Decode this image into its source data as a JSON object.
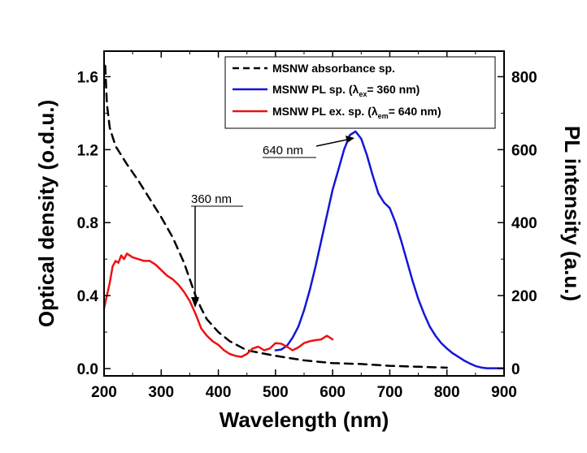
{
  "chart_data": {
    "type": "line",
    "xlabel": "Wavelength (nm)",
    "ylabel_left": "Optical density (o.d.u.)",
    "ylabel_right": "PL intensity (a.u.)",
    "xlim": [
      200,
      900
    ],
    "ylim_left": [
      -0.04,
      1.74
    ],
    "ylim_right": [
      -20,
      870
    ],
    "x_ticks": [
      200,
      300,
      400,
      500,
      600,
      700,
      800,
      900
    ],
    "y_left_ticks": [
      "0.0",
      "0.4",
      "0.8",
      "1.2",
      "1.6"
    ],
    "y_left_tick_values": [
      0.0,
      0.4,
      0.8,
      1.2,
      1.6
    ],
    "y_right_ticks": [
      "0",
      "200",
      "400",
      "600",
      "800"
    ],
    "y_right_tick_values": [
      0,
      200,
      400,
      600,
      800
    ],
    "grid": false,
    "legend_position": "top-right",
    "series": [
      {
        "name": "MSNW absorbance sp.",
        "axis": "left",
        "color": "#000000",
        "style": "dashed",
        "x": [
          202,
          205,
          210,
          220,
          240,
          260,
          280,
          300,
          320,
          340,
          350,
          360,
          370,
          380,
          400,
          420,
          450,
          500,
          550,
          600,
          650,
          700,
          750,
          800
        ],
        "y": [
          1.66,
          1.45,
          1.32,
          1.22,
          1.12,
          1.03,
          0.93,
          0.83,
          0.72,
          0.58,
          0.49,
          0.4,
          0.33,
          0.27,
          0.2,
          0.15,
          0.1,
          0.07,
          0.045,
          0.03,
          0.025,
          0.015,
          0.01,
          0.005
        ]
      },
      {
        "name": "MSNW PL sp. (λex = 360 nm)",
        "axis": "right",
        "color": "#1515d8",
        "style": "solid",
        "x": [
          500,
          510,
          520,
          530,
          540,
          550,
          560,
          570,
          580,
          590,
          600,
          610,
          620,
          630,
          640,
          650,
          660,
          670,
          680,
          690,
          700,
          710,
          720,
          730,
          740,
          750,
          760,
          770,
          780,
          790,
          800,
          810,
          820,
          830,
          840,
          850,
          860,
          870,
          880,
          890,
          900
        ],
        "y": [
          50,
          52,
          62,
          85,
          115,
          160,
          215,
          280,
          350,
          420,
          490,
          545,
          600,
          640,
          650,
          630,
          585,
          530,
          480,
          455,
          440,
          400,
          350,
          295,
          240,
          190,
          150,
          115,
          90,
          70,
          55,
          42,
          32,
          22,
          14,
          7,
          3,
          1,
          1,
          1,
          1
        ]
      },
      {
        "name": "MSNW PL  ex. sp. (λem = 640 nm)",
        "axis": "right",
        "color": "#ee1111",
        "style": "solid",
        "x": [
          200,
          205,
          210,
          215,
          220,
          225,
          230,
          235,
          240,
          245,
          250,
          260,
          270,
          280,
          290,
          300,
          310,
          320,
          330,
          340,
          350,
          360,
          370,
          380,
          390,
          400,
          410,
          420,
          430,
          440,
          450,
          460,
          470,
          480,
          490,
          500,
          510,
          520,
          530,
          540,
          550,
          560,
          570,
          580,
          590,
          600
        ],
        "y": [
          165,
          200,
          235,
          280,
          295,
          290,
          310,
          300,
          315,
          310,
          305,
          300,
          295,
          295,
          285,
          270,
          255,
          245,
          230,
          210,
          185,
          150,
          110,
          90,
          75,
          65,
          50,
          40,
          35,
          32,
          40,
          55,
          60,
          50,
          55,
          70,
          68,
          60,
          50,
          58,
          70,
          75,
          78,
          80,
          90,
          80
        ]
      }
    ],
    "annotations": [
      {
        "text": "640 nm",
        "arrow_to_x": 640,
        "arrow_to_y_right": 650
      },
      {
        "text": "360 nm",
        "arrow_to_x": 360,
        "arrow_to_y_left": 0.4
      }
    ]
  },
  "legend": {
    "abs_label": "MSNW absorbance sp.",
    "pl_prefix": "MSNW PL sp. (",
    "pl_lambda": "λ",
    "pl_sub": "ex",
    "pl_suffix": "= 360 nm)",
    "plex_prefix": "MSNW PL  ex. sp. (",
    "plex_lambda": "λ",
    "plex_sub": "em",
    "plex_suffix": "= 640 nm)"
  },
  "annotations": {
    "a640": "640 nm",
    "a360": "360 nm"
  },
  "colors": {
    "absorbance": "#000000",
    "pl": "#1515d8",
    "pl_ex": "#ee1111"
  }
}
